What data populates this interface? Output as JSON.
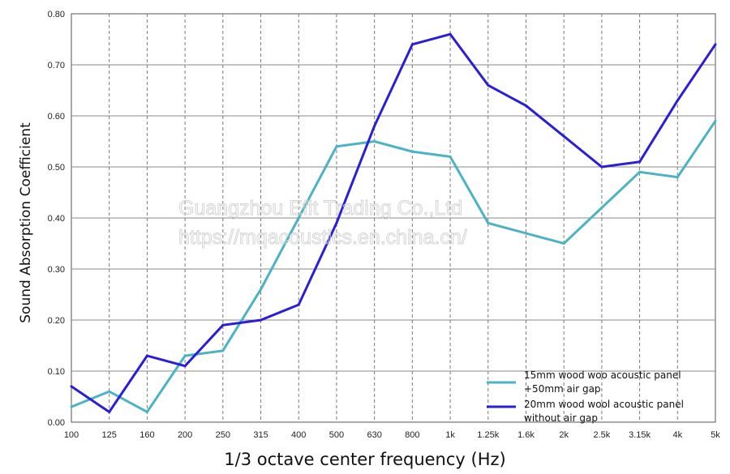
{
  "chart_data": {
    "type": "line",
    "xlabel": "1/3 octave center frequency (Hz)",
    "ylabel": "Sound Absorption Coefficient",
    "categories": [
      "100",
      "125",
      "160",
      "200",
      "250",
      "315",
      "400",
      "500",
      "630",
      "800",
      "1k",
      "1.25k",
      "1.6k",
      "2k",
      "2.5k",
      "3.15k",
      "4k",
      "5k"
    ],
    "ylim": [
      0,
      0.8
    ],
    "yticks": [
      "0.00",
      "0.10",
      "0.20",
      "0.30",
      "0.40",
      "0.50",
      "0.60",
      "0.70",
      "0.80"
    ],
    "grid": "dashed vertical, solid horizontal",
    "legend_position": "bottom-right",
    "series": [
      {
        "name": [
          "15mm wood woo acoustic panel",
          "+50mm air gap"
        ],
        "color": "#4bb3c3",
        "values": [
          0.03,
          0.06,
          0.02,
          0.13,
          0.14,
          0.26,
          0.4,
          0.54,
          0.55,
          0.53,
          0.52,
          0.39,
          0.37,
          0.35,
          0.42,
          0.49,
          0.48,
          0.59
        ]
      },
      {
        "name": [
          "20mm wood wool acoustic panel",
          "without air gap"
        ],
        "color": "#2a1fd6",
        "values": [
          0.07,
          0.02,
          0.13,
          0.11,
          0.19,
          0.2,
          0.23,
          0.39,
          0.58,
          0.74,
          0.76,
          0.66,
          0.62,
          0.56,
          0.5,
          0.51,
          0.63,
          0.74
        ]
      }
    ]
  },
  "watermark": {
    "line1": "Guangzhou Efit Trading Co.,Ltd",
    "line2": "https://mqacoustics.en.china.cn/"
  }
}
